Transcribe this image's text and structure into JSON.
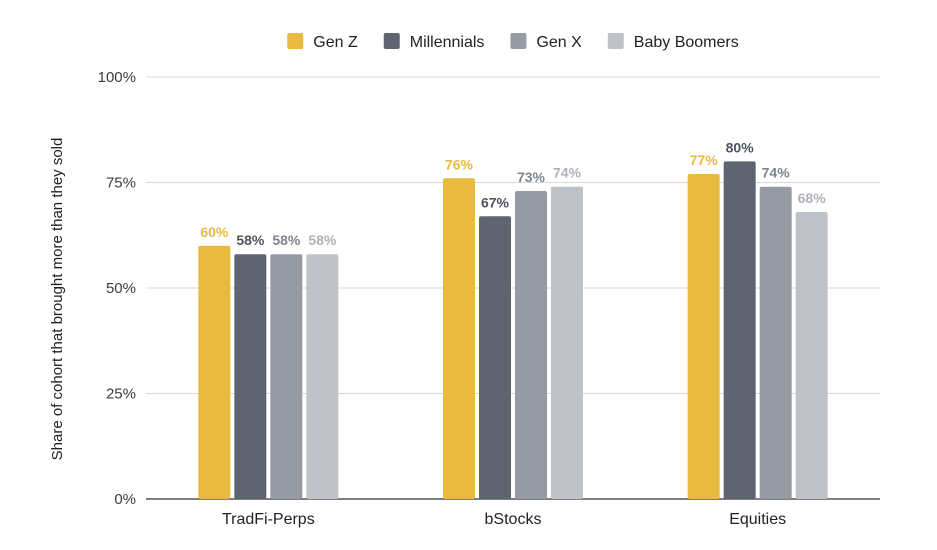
{
  "chart_data": {
    "type": "bar",
    "title": "",
    "xlabel": "",
    "ylabel": "Share of cohort that brought more than they sold",
    "ylim": [
      0,
      100
    ],
    "y_ticks": [
      "0%",
      "25%",
      "50%",
      "75%",
      "100%"
    ],
    "y_tick_values": [
      0,
      25,
      50,
      75,
      100
    ],
    "grid": true,
    "legend_position": "top-center",
    "categories": [
      "TradFi-Perps",
      "bStocks",
      "Equities"
    ],
    "series": [
      {
        "name": "Gen Z",
        "color": "#E9B940",
        "label_color": "#E9B940",
        "values": [
          60,
          76,
          77
        ],
        "labels": [
          "60%",
          "76%",
          "77%"
        ]
      },
      {
        "name": "Millennials",
        "color": "#5E6470",
        "label_color": "#4F545D",
        "values": [
          58,
          67,
          80
        ],
        "labels": [
          "58%",
          "67%",
          "80%"
        ]
      },
      {
        "name": "Gen X",
        "color": "#969BA3",
        "label_color": "#7F848C",
        "values": [
          58,
          73,
          74
        ],
        "labels": [
          "58%",
          "73%",
          "74%"
        ]
      },
      {
        "name": "Baby Boomers",
        "color": "#BFC2C7",
        "label_color": "#AEB2B8",
        "values": [
          58,
          74,
          68
        ],
        "labels": [
          "58%",
          "74%",
          "68%"
        ]
      }
    ]
  }
}
